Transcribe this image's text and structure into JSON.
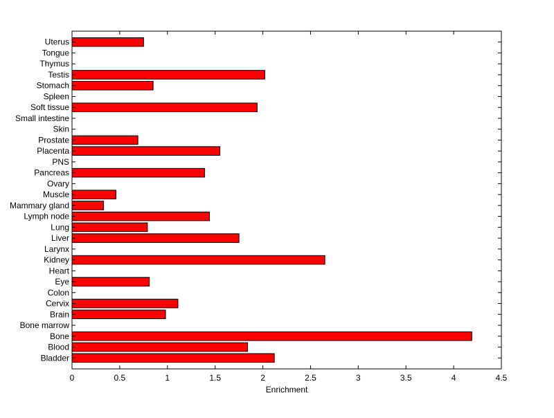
{
  "chart_data": {
    "type": "bar",
    "orientation": "horizontal",
    "title": "",
    "xlabel": "Enrichment",
    "ylabel": "",
    "xlim": [
      0,
      4.5
    ],
    "xticks": [
      0,
      0.5,
      1,
      1.5,
      2,
      2.5,
      3,
      3.5,
      4,
      4.5
    ],
    "xtick_labels": [
      "0",
      "0.5",
      "1",
      "1.5",
      "2",
      "2.5",
      "3",
      "3.5",
      "4",
      "4.5"
    ],
    "grid": false,
    "bar_color": "#ff0000",
    "categories": [
      "Bladder",
      "Blood",
      "Bone",
      "Bone marrow",
      "Brain",
      "Cervix",
      "Colon",
      "Eye",
      "Heart",
      "Kidney",
      "Larynx",
      "Liver",
      "Lung",
      "Lymph node",
      "Mammary gland",
      "Muscle",
      "Ovary",
      "Pancreas",
      "PNS",
      "Placenta",
      "Prostate",
      "Skin",
      "Small intestine",
      "Soft tissue",
      "Spleen",
      "Stomach",
      "Testis",
      "Thymus",
      "Tongue",
      "Uterus"
    ],
    "values": [
      2.12,
      1.84,
      4.19,
      0,
      0.98,
      1.11,
      0,
      0.81,
      0,
      2.65,
      0,
      1.75,
      0.79,
      1.44,
      0.33,
      0.46,
      0,
      1.39,
      0,
      1.55,
      0.69,
      0,
      0,
      1.94,
      0,
      0.85,
      2.02,
      0,
      0,
      0.75
    ]
  }
}
